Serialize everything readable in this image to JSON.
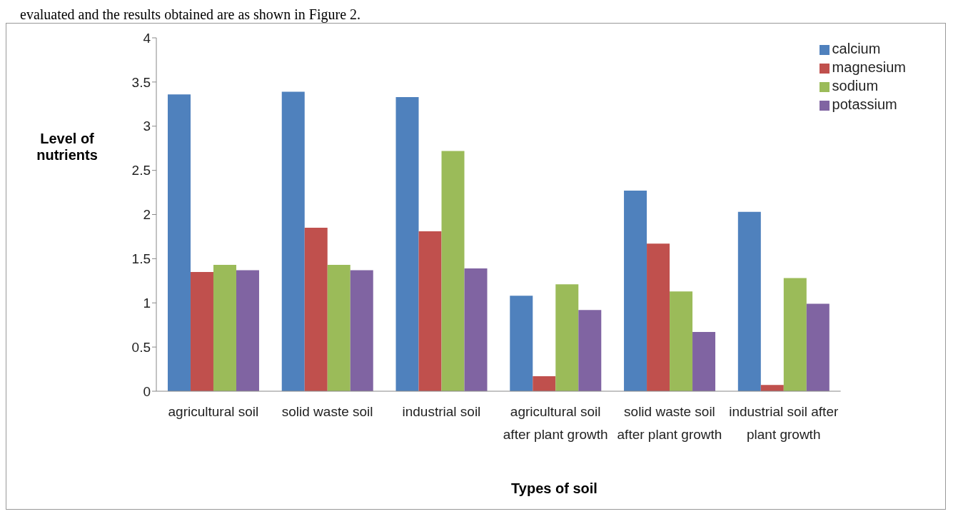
{
  "chart_data": {
    "type": "bar",
    "annotations": [
      "evaluated and the results obtained are as shown in Figure 2."
    ],
    "xlabel": "Types of soil",
    "ylabel": "Level of nutrients",
    "categories": [
      "agricultural soil",
      "solid waste soil",
      "industrial soil",
      "agricultural soil after plant growth",
      "solid waste soil after plant growth",
      "industrial soil after plant growth"
    ],
    "series": [
      {
        "name": "calcium",
        "color": "#4f81bd",
        "values": [
          3.36,
          3.39,
          3.33,
          1.08,
          2.27,
          2.03
        ]
      },
      {
        "name": "magnesium",
        "color": "#c0504d",
        "values": [
          1.35,
          1.85,
          1.81,
          0.17,
          1.67,
          0.07
        ]
      },
      {
        "name": "sodium",
        "color": "#9bbb59",
        "values": [
          1.43,
          1.43,
          2.72,
          1.21,
          1.13,
          1.28
        ]
      },
      {
        "name": "potassium",
        "color": "#8064a2",
        "values": [
          1.37,
          1.37,
          1.39,
          0.92,
          0.67,
          0.99
        ]
      }
    ],
    "ylim": [
      0,
      4
    ],
    "yticks": [
      0,
      0.5,
      1,
      1.5,
      2,
      2.5,
      3,
      3.5,
      4
    ],
    "grid": false,
    "legend": "top right"
  }
}
